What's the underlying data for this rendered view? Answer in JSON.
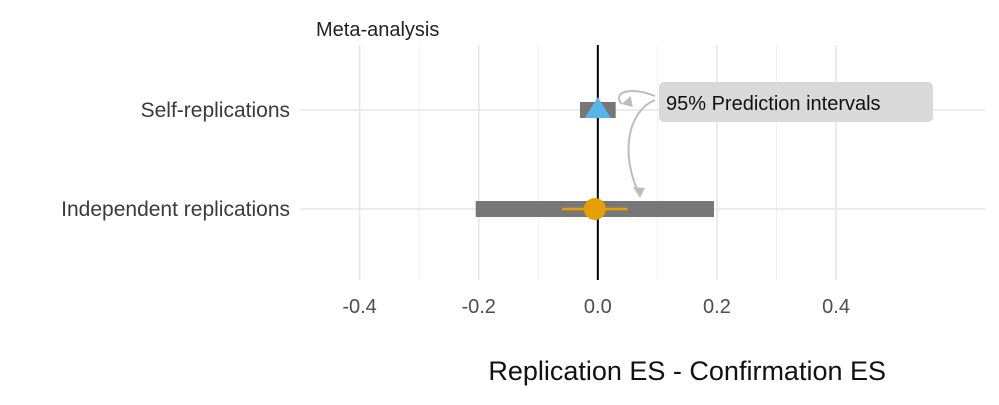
{
  "chart_data": {
    "type": "forest",
    "title": "Meta-analysis",
    "xlabel": "Replication ES - Confirmation ES",
    "ylabel": "",
    "xlim": [
      -0.5,
      0.65
    ],
    "x_ticks": [
      -0.4,
      -0.2,
      0.0,
      0.2,
      0.4
    ],
    "x_tick_labels": [
      "-0.4",
      "-0.2",
      "0.0",
      "0.2",
      "0.4"
    ],
    "grid": true,
    "reference_line_x": 0,
    "rows": [
      {
        "label": "Self-replications",
        "estimate": 0.0,
        "ci": [
          -0.005,
          0.005
        ],
        "prediction_interval": [
          -0.03,
          0.03
        ],
        "marker": "triangle",
        "color": "#56B4E9"
      },
      {
        "label": "Independent replications",
        "estimate": -0.005,
        "ci": [
          -0.06,
          0.05
        ],
        "prediction_interval": [
          -0.205,
          0.195
        ],
        "marker": "circle",
        "color": "#E69F00"
      }
    ],
    "annotation": {
      "text": "95% Prediction intervals"
    },
    "colors": {
      "prediction_interval": "#777777",
      "grid": "#e6e6e6",
      "reference_line": "#000000",
      "annotation_box": "#d9d9d9",
      "arrow": "#bdbdbd"
    }
  }
}
